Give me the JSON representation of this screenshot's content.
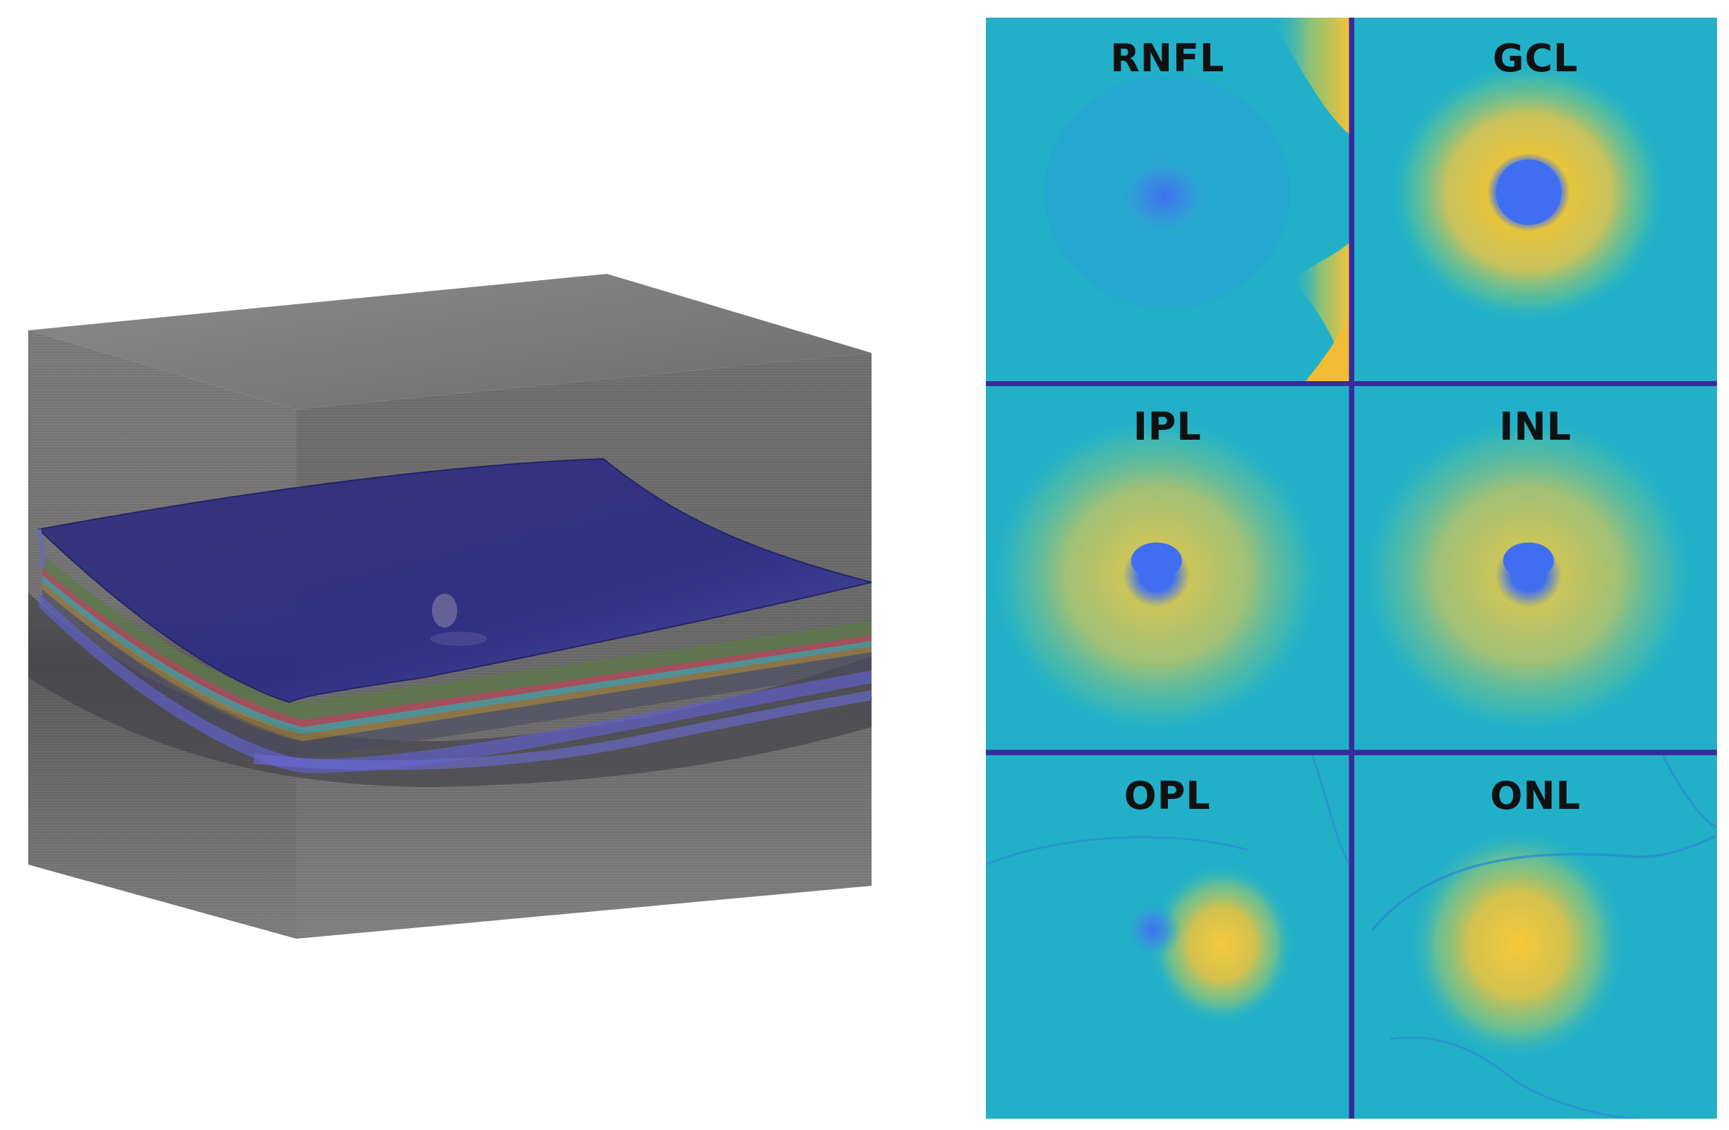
{
  "colors": {
    "cube_gray": "#6b6b6b",
    "layer_surface": "#3a3a9a",
    "map_base": "#21b3c7",
    "map_low": "#3d7cf2",
    "map_high": "#f2c132",
    "grid_line": "#3b2a9a"
  },
  "thickness_maps": {
    "panels": [
      {
        "label": "RNFL",
        "pattern": "rnfl"
      },
      {
        "label": "GCL",
        "pattern": "ring"
      },
      {
        "label": "IPL",
        "pattern": "diffuse"
      },
      {
        "label": "INL",
        "pattern": "diffuse"
      },
      {
        "label": "OPL",
        "pattern": "opl"
      },
      {
        "label": "ONL",
        "pattern": "onl"
      }
    ]
  }
}
